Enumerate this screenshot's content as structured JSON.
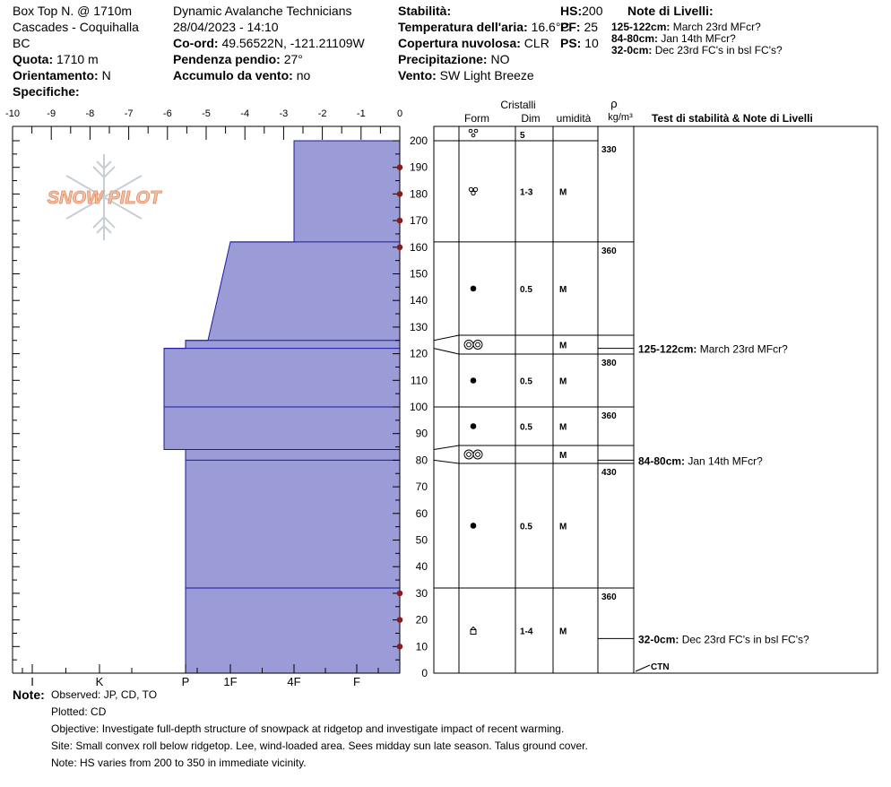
{
  "header": {
    "location": "Box Top N. @ 1710m",
    "region": "Cascades - Coquihalla",
    "state": "BC",
    "elevation_label": "Quota:",
    "elevation_value": "1710 m",
    "aspect_label": "Orientamento:",
    "aspect_value": "N",
    "specifics_label": "Specifiche:",
    "operator": "Dynamic Avalanche Technicians",
    "datetime": "28/04/2023 - 14:10",
    "coord_label": "Co-ord:",
    "coord_value": "49.56522N, -121.21109W",
    "slope_label": "Pendenza pendio:",
    "slope_value": "27°",
    "wind_loading_label": "Accumulo da vento:",
    "wind_loading_value": "no",
    "stability_label": "Stabilità:",
    "air_temp_label": "Temperatura dell'aria:",
    "air_temp_value": "16.6°C",
    "sky_label": "Copertura nuvolosa:",
    "sky_value": "CLR",
    "precip_label": "Precipitazione:",
    "precip_value": "NO",
    "wind_label": "Vento:",
    "wind_value": "SW Light Breeze",
    "hs_label": "HS:",
    "hs_value": "200",
    "pf_label": "PF:",
    "pf_value": "25",
    "ps_label": "PS:",
    "ps_value": "10",
    "layer_notes_title": "Note di Livelli:",
    "layer_notes": [
      {
        "range": "125-122cm:",
        "text": "March 23rd MFcr?"
      },
      {
        "range": "84-80cm:",
        "text": "Jan 14th MFcr?"
      },
      {
        "range": "32-0cm:",
        "text": "Dec 23rd FC's in bsl FC's?"
      }
    ]
  },
  "logo_text": "SNOW PILOT",
  "columns": {
    "crystals": "Cristalli",
    "form": "Form",
    "dim": "Dim",
    "humidity": "umidità",
    "rho": "ρ",
    "density_unit": "kg/m³",
    "tests": "Test di stabilità & Note di Livelli"
  },
  "chart_data": {
    "type": "area",
    "title": "",
    "x_axis_top": {
      "range": [
        -10,
        0
      ],
      "ticks": [
        "-10",
        "-9",
        "-8",
        "-7",
        "-6",
        "-5",
        "-4",
        "-3",
        "-2",
        "-1",
        "0"
      ]
    },
    "x_axis_bottom": {
      "labels": [
        "I",
        "K",
        "P",
        "1F",
        "4F",
        "F"
      ]
    },
    "y_axis": {
      "range": [
        0,
        200
      ],
      "ticks": [
        "0",
        "10",
        "20",
        "30",
        "40",
        "50",
        "60",
        "70",
        "80",
        "90",
        "100",
        "110",
        "120",
        "130",
        "140",
        "150",
        "160",
        "170",
        "180",
        "190",
        "200"
      ]
    },
    "temperature_points_cm": [
      10,
      20,
      30,
      160,
      170,
      180,
      190
    ],
    "hardness_profile": [
      {
        "top": 200,
        "bottom": 162,
        "hardness_top": "4F+",
        "hardness_bottom": "4F+"
      },
      {
        "top": 162,
        "bottom": 125,
        "hardness_top": "1F+",
        "hardness_bottom": "1F-"
      },
      {
        "top": 125,
        "bottom": 122,
        "hardness": "P"
      },
      {
        "top": 122,
        "bottom": 84,
        "hardness": "P+"
      },
      {
        "top": 84,
        "bottom": 0,
        "hardness": "P"
      }
    ],
    "hardness_lines_cm": [
      122,
      100,
      84,
      80,
      32
    ],
    "layers": [
      {
        "top": 200,
        "bottom": 162,
        "form": "precip-icon",
        "dim": "1-3",
        "moisture": "M",
        "density": "330"
      },
      {
        "top": 162,
        "bottom": 125,
        "form": "round-icon",
        "dim": "0.5",
        "moisture": "M",
        "density": "360"
      },
      {
        "top": 125,
        "bottom": 122,
        "form": "meltfreeze-icon",
        "dim": "",
        "moisture": "M",
        "density": ""
      },
      {
        "top": 122,
        "bottom": 100,
        "form": "round-icon",
        "dim": "0.5",
        "moisture": "M",
        "density": "380"
      },
      {
        "top": 100,
        "bottom": 84,
        "form": "round-icon",
        "dim": "0.5",
        "moisture": "M",
        "density": "360"
      },
      {
        "top": 84,
        "bottom": 80,
        "form": "meltfreeze-icon",
        "dim": "",
        "moisture": "M",
        "density": ""
      },
      {
        "top": 80,
        "bottom": 32,
        "form": "round-icon",
        "dim": "0.5",
        "moisture": "M",
        "density": "430"
      },
      {
        "top": 32,
        "bottom": 0,
        "form": "facet-icon",
        "dim": "1-4",
        "moisture": "M",
        "density": "360"
      }
    ],
    "top_surface": {
      "form": "surface-icon",
      "dim": "5"
    },
    "stability_notes": [
      {
        "height": 122,
        "range": "125-122cm:",
        "text": "March 23rd MFcr?"
      },
      {
        "height": 80,
        "range": "84-80cm:",
        "text": "Jan 14th MFcr?"
      },
      {
        "height": 13,
        "range": "32-0cm:",
        "text": "Dec 23rd FC's in bsl FC's?"
      },
      {
        "height": 0,
        "range": "",
        "text": "CTN"
      }
    ]
  },
  "notes": {
    "label": "Note:",
    "lines": [
      "Observed: JP, CD, TO",
      "Plotted: CD",
      "Objective: Investigate full-depth structure of snowpack at ridgetop and investigate impact of recent warming.",
      "Site: Small convex roll below ridgetop. Lee, wind-loaded area. Sees midday sun late season. Talus ground cover.",
      "Note: HS varies from 200 to 350 in immediate vicinity."
    ]
  },
  "colors": {
    "hardness_fill": "#9b9bd7",
    "hardness_line": "#1a1aa0",
    "temp_marker": "#8b1a1a",
    "logo": "#f0a878"
  }
}
